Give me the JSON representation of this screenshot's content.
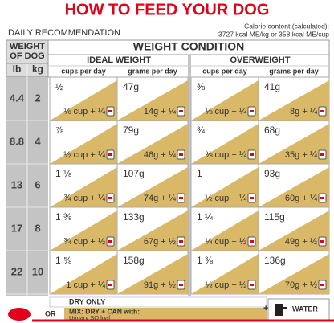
{
  "title": "HOW TO FEED YOUR DOG",
  "subtitle": "DAILY RECOMMENDATION",
  "calorie_note": [
    "Calorie content (calculated):",
    "3727 kcal ME/kg or 358 kcal ME/cup"
  ],
  "table": {
    "weight_header": [
      "WEIGHT",
      "OF DOG"
    ],
    "units": [
      "lb",
      "kg"
    ],
    "condition_header": "WEIGHT CONDITION",
    "groups": [
      "IDEAL WEIGHT",
      "OVERWEIGHT"
    ],
    "columns": [
      "cups per day",
      "grams per day",
      "cups per day",
      "grams per day"
    ],
    "rows": [
      {
        "lb": 4.4,
        "kg": 2,
        "cells": [
          [
            "½",
            "⅛ cup + ¼"
          ],
          [
            "47g",
            "14g + ¼"
          ],
          [
            "⅜",
            "⅛ cup + ¼"
          ],
          [
            "41g",
            "8g + ¼"
          ]
        ]
      },
      {
        "lb": 8.8,
        "kg": 4,
        "cells": [
          [
            "⅞",
            "½ cup + ¼"
          ],
          [
            "79g",
            "46g + ¼"
          ],
          [
            "¾",
            "⅜ cup + ¼"
          ],
          [
            "68g",
            "35g + ¼"
          ]
        ]
      },
      {
        "lb": 13,
        "kg": 6,
        "cells": [
          [
            "1 ⅛",
            "¾ cup + ¼"
          ],
          [
            "107g",
            "74g + ¼"
          ],
          [
            "1",
            "½ cup + ¼"
          ],
          [
            "93g",
            "60g + ¼"
          ]
        ]
      },
      {
        "lb": 17,
        "kg": 8,
        "cells": [
          [
            "1 ⅜",
            "¾ cup + ½"
          ],
          [
            "133g",
            "67g + ½"
          ],
          [
            "1 ¼",
            "¼ cup + ½"
          ],
          [
            "115g",
            "49g + ½"
          ]
        ]
      },
      {
        "lb": 22,
        "kg": 10,
        "cells": [
          [
            "1 ⅝",
            "1 cup + ¼"
          ],
          [
            "158g",
            "91g + ½"
          ],
          [
            "1 ⅜",
            "½ cup + ½"
          ],
          [
            "136g",
            "70g + ½"
          ]
        ]
      }
    ]
  },
  "legend": {
    "dry": "DRY ONLY",
    "or": "OR",
    "mix": "MIX: DRY + CAN with:",
    "mix_product": "Urinary SO loaf",
    "water": "WATER"
  }
}
